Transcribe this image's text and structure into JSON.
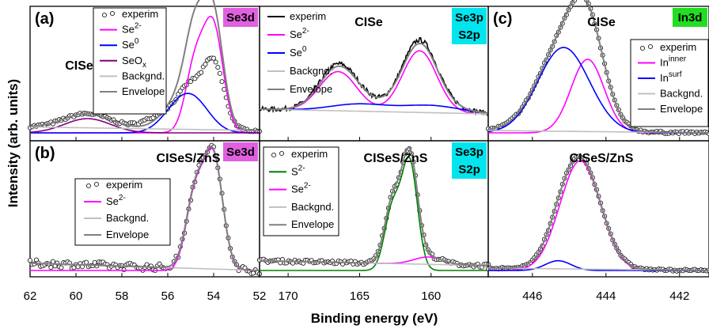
{
  "figure": {
    "ylabel": "Intensity (arb. units)",
    "xlabel": "Binding energy (eV)"
  },
  "chart_data": [
    {
      "type": "line",
      "panel_label": "(a)",
      "sample": "CISe",
      "region": "Se3d",
      "region_color": "#e060e0",
      "xlim": [
        62,
        52
      ],
      "x_ticks": [
        62,
        60,
        58,
        56,
        54,
        52
      ],
      "legend": "top-left",
      "legend_entries": [
        "experim",
        "Se2-",
        "Se0",
        "SeOx",
        "Backgnd.",
        "Envelope"
      ],
      "series": [
        {
          "name": "experim",
          "kind": "points",
          "color": "#000000",
          "peaks": [
            [
              59.5,
              0.12,
              1.0
            ],
            [
              56.0,
              0.14,
              0.8
            ],
            [
              55.0,
              0.3,
              0.5
            ],
            [
              54.0,
              0.55,
              0.45
            ]
          ],
          "baseline": [
            0.05,
            0.02
          ],
          "noise": 0.012
        },
        {
          "name": "Se2-",
          "color": "#ff00ff",
          "peaks": [
            [
              54.8,
              0.58,
              0.42
            ],
            [
              54.0,
              0.86,
              0.42
            ]
          ]
        },
        {
          "name": "Se0",
          "color": "#0000ff",
          "peaks": [
            [
              55.6,
              0.17,
              0.7
            ],
            [
              54.8,
              0.22,
              0.7
            ]
          ]
        },
        {
          "name": "SeOx",
          "color": "#800080",
          "peaks": [
            [
              59.5,
              0.12,
              1.0
            ]
          ]
        },
        {
          "name": "Backgnd.",
          "color": "#c0c0c0",
          "peaks": [],
          "baseline": [
            0.05,
            0.02
          ]
        },
        {
          "name": "Envelope",
          "color": "#808080",
          "envelope": true
        }
      ]
    },
    {
      "type": "line",
      "panel_label": "",
      "sample": "CISe",
      "region": "Se3p\nS2p",
      "region_lines": [
        "Se3p",
        "S2p"
      ],
      "region_color": "#00e5ee",
      "xlim": [
        172,
        156
      ],
      "x_ticks": [
        170,
        165,
        160
      ],
      "legend": "top-left",
      "legend_entries": [
        "experim",
        "Se2-",
        "Se0",
        "Backgnd.",
        "Envelope"
      ],
      "series": [
        {
          "name": "experim",
          "kind": "line",
          "color": "#000000",
          "peaks": [
            [
              166.5,
              0.35,
              1.3
            ],
            [
              160.8,
              0.55,
              1.2
            ],
            [
              165.0,
              0.06,
              2.0
            ],
            [
              160.0,
              0.06,
              2.0
            ]
          ],
          "baseline": [
            0.2,
            0.16
          ],
          "noise": 0.02
        },
        {
          "name": "Se2-",
          "color": "#ff00ff",
          "peaks": [
            [
              166.5,
              0.33,
              1.3
            ],
            [
              160.8,
              0.52,
              1.2
            ]
          ],
          "baseline": [
            0.2,
            0.16
          ]
        },
        {
          "name": "Se0",
          "color": "#0000ff",
          "peaks": [
            [
              165.0,
              0.06,
              2.0
            ],
            [
              160.0,
              0.06,
              2.0
            ]
          ],
          "baseline": [
            0.2,
            0.16
          ]
        },
        {
          "name": "Backgnd.",
          "color": "#c0c0c0",
          "peaks": [],
          "baseline": [
            0.2,
            0.16
          ]
        },
        {
          "name": "Envelope",
          "color": "#808080",
          "envelope": true
        }
      ]
    },
    {
      "type": "line",
      "panel_label": "(c)",
      "sample": "CISe",
      "region": "In3d",
      "region_color": "#22dd22",
      "xlim": [
        447.2,
        441.2
      ],
      "x_ticks": [
        446,
        444,
        442
      ],
      "legend": "top-right",
      "legend_entries": [
        "experim",
        "In^inner",
        "In^surf",
        "Backgnd.",
        "Envelope"
      ],
      "series": [
        {
          "name": "experim",
          "kind": "points",
          "color": "#000000",
          "peaks": [
            [
              445.15,
              0.72,
              0.7
            ],
            [
              444.5,
              0.62,
              0.45
            ]
          ],
          "baseline": [
            0.02,
            0.0
          ],
          "noise": 0.01
        },
        {
          "name": "In^inner",
          "color": "#ff00ff",
          "peaks": [
            [
              444.5,
              0.62,
              0.45
            ]
          ]
        },
        {
          "name": "In^surf",
          "color": "#0000ff",
          "peaks": [
            [
              445.15,
              0.72,
              0.7
            ]
          ]
        },
        {
          "name": "Backgnd.",
          "color": "#c0c0c0",
          "peaks": [],
          "baseline": [
            0.02,
            0.0
          ]
        },
        {
          "name": "Envelope",
          "color": "#808080",
          "envelope": true
        }
      ]
    },
    {
      "type": "line",
      "panel_label": "(b)",
      "sample": "CISeS/ZnS",
      "region": "Se3d",
      "region_color": "#e060e0",
      "xlim": [
        62,
        52
      ],
      "x_ticks": [
        62,
        60,
        58,
        56,
        54,
        52
      ],
      "legend": "top-left",
      "legend_entries": [
        "experim",
        "Se2-",
        "Backgnd.",
        "Envelope"
      ],
      "series": [
        {
          "name": "experim",
          "kind": "points",
          "color": "#000000",
          "peaks": [
            [
              54.8,
              0.62,
              0.4
            ],
            [
              54.0,
              0.9,
              0.4
            ]
          ],
          "baseline": [
            0.06,
            0.0
          ],
          "noise": 0.03
        },
        {
          "name": "Se2-",
          "color": "#ff00ff",
          "peaks": [
            [
              54.8,
              0.62,
              0.4
            ],
            [
              54.0,
              0.9,
              0.4
            ]
          ]
        },
        {
          "name": "Backgnd.",
          "color": "#c0c0c0",
          "peaks": [],
          "baseline": [
            0.06,
            0.0
          ]
        },
        {
          "name": "Envelope",
          "color": "#808080",
          "envelope": true
        }
      ]
    },
    {
      "type": "line",
      "panel_label": "",
      "sample": "CISeS/ZnS",
      "region": "Se3p\nS2p",
      "region_lines": [
        "Se3p",
        "S2p"
      ],
      "region_color": "#00e5ee",
      "xlim": [
        172,
        156
      ],
      "x_ticks": [
        170,
        165,
        160
      ],
      "legend": "top-left",
      "legend_entries": [
        "experim",
        "S2-",
        "Se2-",
        "Backgnd.",
        "Envelope"
      ],
      "series": [
        {
          "name": "experim",
          "kind": "points",
          "color": "#000000",
          "peaks": [
            [
              162.7,
              0.5,
              0.55
            ],
            [
              161.5,
              0.88,
              0.55
            ],
            [
              160.2,
              0.06,
              1.0
            ]
          ],
          "baseline": [
            0.08,
            0.04
          ],
          "noise": 0.015
        },
        {
          "name": "S2-",
          "color": "#008000",
          "peaks": [
            [
              162.7,
              0.5,
              0.55
            ],
            [
              161.5,
              0.88,
              0.55
            ]
          ]
        },
        {
          "name": "Se2-",
          "color": "#ff00ff",
          "peaks": [
            [
              160.2,
              0.06,
              1.0
            ]
          ],
          "baseline": [
            0.08,
            0.04
          ]
        },
        {
          "name": "Backgnd.",
          "color": "#c0c0c0",
          "peaks": [],
          "baseline": [
            0.08,
            0.04
          ]
        },
        {
          "name": "Envelope",
          "color": "#808080",
          "envelope": true
        }
      ]
    },
    {
      "type": "line",
      "panel_label": "",
      "sample": "CISeS/ZnS",
      "region": "",
      "xlim": [
        447.2,
        441.2
      ],
      "x_ticks": [
        446,
        444,
        442
      ],
      "legend": "none",
      "legend_entries": [],
      "series": [
        {
          "name": "experim",
          "kind": "points",
          "color": "#000000",
          "peaks": [
            [
              444.7,
              0.9,
              0.55
            ],
            [
              445.3,
              0.08,
              0.35
            ]
          ],
          "baseline": [
            0.02,
            0.0
          ],
          "noise": 0.008
        },
        {
          "name": "In^inner",
          "color": "#ff00ff",
          "peaks": [
            [
              444.7,
              0.9,
              0.55
            ]
          ]
        },
        {
          "name": "In^surf",
          "color": "#0000ff",
          "peaks": [
            [
              445.3,
              0.08,
              0.35
            ]
          ]
        },
        {
          "name": "Backgnd.",
          "color": "#c0c0c0",
          "peaks": [],
          "baseline": [
            0.02,
            0.0
          ]
        },
        {
          "name": "Envelope",
          "color": "#808080",
          "envelope": true
        }
      ]
    }
  ]
}
